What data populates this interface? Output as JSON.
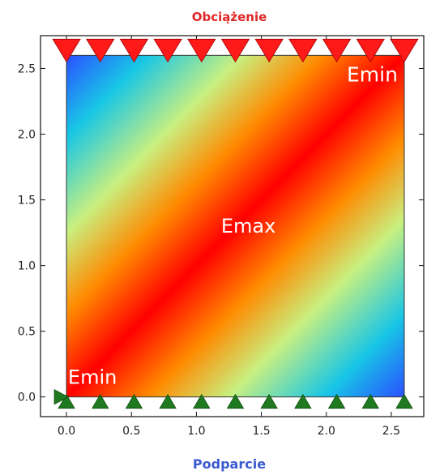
{
  "chart_data": {
    "type": "heatmap",
    "title": "Obciążenie",
    "xlabel": "Podparcie",
    "ylabel": "",
    "xlim": [
      -0.2,
      2.75
    ],
    "ylim": [
      -0.15,
      2.75
    ],
    "domain": {
      "x": [
        0.0,
        2.6
      ],
      "y": [
        0.0,
        2.6
      ]
    },
    "x_ticks": [
      0.0,
      0.5,
      1.0,
      1.5,
      2.0,
      2.5
    ],
    "x_tick_labels": [
      "0.0",
      "0.5",
      "1.0",
      "1.5",
      "2.0",
      "2.5"
    ],
    "y_ticks": [
      0.0,
      0.5,
      1.0,
      1.5,
      2.0,
      2.5
    ],
    "y_tick_labels": [
      "0.0",
      "0.5",
      "1.0",
      "1.5",
      "2.0",
      "2.5"
    ],
    "colormap": "rainbow",
    "annotations": [
      {
        "text": "Emin",
        "x": 2.55,
        "y": 2.4
      },
      {
        "text": "Emax",
        "x": 1.4,
        "y": 1.25
      },
      {
        "text": "Emin",
        "x": 0.2,
        "y": 0.1
      }
    ],
    "load_markers": {
      "symbol": "downward-triangle",
      "color": "#ff1a1a",
      "y": 2.6,
      "x": [
        0.0,
        0.26,
        0.52,
        0.78,
        1.04,
        1.3,
        1.56,
        1.82,
        2.08,
        2.34,
        2.6
      ]
    },
    "support_markers": {
      "symbol": "upward-triangle",
      "color": "#1f7a1f",
      "y": 0.0,
      "x": [
        0.0,
        0.26,
        0.52,
        0.78,
        1.04,
        1.3,
        1.56,
        1.82,
        2.08,
        2.34,
        2.6
      ]
    },
    "fixed_marker": {
      "symbol": "right-triangle",
      "color": "#1f7a1f",
      "x": 0.0,
      "y": 0.0
    },
    "grid": false,
    "legend": "none"
  }
}
